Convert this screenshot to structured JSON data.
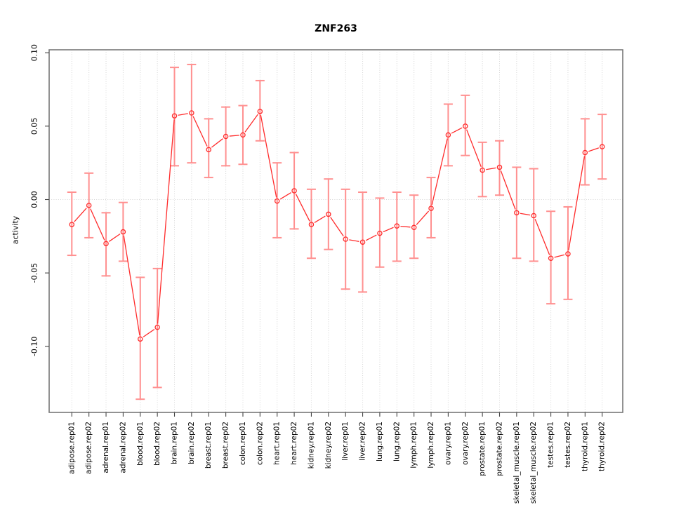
{
  "figure": {
    "background": "#ffffff"
  },
  "chart_data": {
    "type": "line",
    "title": "ZNF263",
    "ylabel": "activity",
    "categories": [
      "adipose.rep01",
      "adipose.rep02",
      "adrenal.rep01",
      "adrenal.rep02",
      "blood.rep01",
      "blood.rep02",
      "brain.rep01",
      "brain.rep02",
      "breast.rep01",
      "breast.rep02",
      "colon.rep01",
      "colon.rep02",
      "heart.rep01",
      "heart.rep02",
      "kidney.rep01",
      "kidney.rep02",
      "liver.rep01",
      "liver.rep02",
      "lung.rep01",
      "lung.rep02",
      "lymph.rep01",
      "lymph.rep02",
      "ovary.rep01",
      "ovary.rep02",
      "prostate.rep01",
      "prostate.rep02",
      "skeletal_muscle.rep01",
      "skeletal_muscle.rep02",
      "testes.rep01",
      "testes.rep02",
      "thyroid.rep01",
      "thyroid.rep02"
    ],
    "series": [
      {
        "name": "activity",
        "values": [
          -0.017,
          -0.004,
          -0.03,
          -0.022,
          -0.095,
          -0.087,
          0.057,
          0.059,
          0.034,
          0.043,
          0.044,
          0.06,
          -0.001,
          0.006,
          -0.017,
          -0.01,
          -0.027,
          -0.029,
          -0.023,
          -0.018,
          -0.019,
          -0.006,
          0.044,
          0.05,
          0.02,
          0.022,
          -0.009,
          -0.011,
          -0.04,
          -0.037,
          0.032,
          0.036
        ],
        "err_low": [
          -0.038,
          -0.026,
          -0.052,
          -0.042,
          -0.136,
          -0.128,
          0.023,
          0.025,
          0.015,
          0.023,
          0.024,
          0.04,
          -0.026,
          -0.02,
          -0.04,
          -0.034,
          -0.061,
          -0.063,
          -0.046,
          -0.042,
          -0.04,
          -0.026,
          0.023,
          0.03,
          0.002,
          0.003,
          -0.04,
          -0.042,
          -0.071,
          -0.068,
          0.01,
          0.014
        ],
        "err_high": [
          0.005,
          0.018,
          -0.009,
          -0.002,
          -0.053,
          -0.047,
          0.09,
          0.092,
          0.055,
          0.063,
          0.064,
          0.081,
          0.025,
          0.032,
          0.007,
          0.014,
          0.007,
          0.005,
          0.001,
          0.005,
          0.003,
          0.015,
          0.065,
          0.071,
          0.039,
          0.04,
          0.022,
          0.021,
          -0.008,
          -0.005,
          0.055,
          0.058
        ]
      }
    ],
    "ylim": [
      -0.145,
      0.102
    ],
    "ytick_values": [
      0.1,
      0.05,
      0.0,
      -0.05,
      -0.1
    ],
    "ytick_labels": [
      "0.10",
      "0.05",
      "0.00",
      "-0.05",
      "-0.10"
    ],
    "grid": {
      "vertical_per_category": true,
      "horizontal_at_zero_only": true
    },
    "legend": "none",
    "colors": {
      "point": "#ff2b2b",
      "line": "#ff2b2b",
      "error_bar": "#ff9090",
      "grid": "#d6d6d6",
      "axis_box": "#777777",
      "tick": "#444444",
      "text": "#000000"
    }
  }
}
